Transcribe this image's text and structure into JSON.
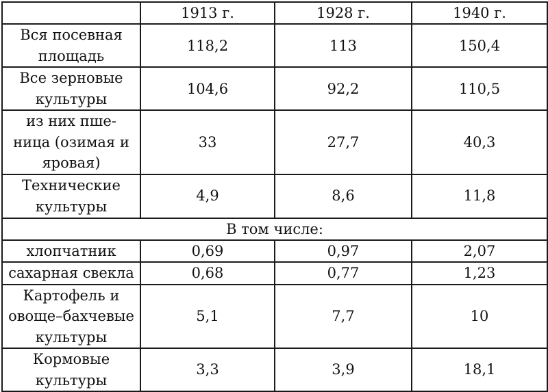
{
  "columns": [
    "",
    "1913 г.",
    "1928 г.",
    "1940 г."
  ],
  "rows": [
    {
      "label_lines": [
        "Вся посевная",
        "площадь"
      ],
      "values": [
        "118,2",
        "113",
        "150,4"
      ]
    },
    {
      "label_lines": [
        "Все зерновые",
        "культуры"
      ],
      "values": [
        "104,6",
        "92,2",
        "110,5"
      ]
    },
    {
      "label_lines": [
        "из них пше-",
        "ница (озимая и",
        "яровая)"
      ],
      "values": [
        "33",
        "27,7",
        "40,3"
      ]
    },
    {
      "label_lines": [
        "Технические",
        "культуры"
      ],
      "values": [
        "4,9",
        "8,6",
        "11,8"
      ]
    }
  ],
  "subheading": "В том числе:",
  "sub_rows": [
    {
      "label_lines": [
        "хлопчатник"
      ],
      "values": [
        "0,69",
        "0,97",
        "2,07"
      ]
    },
    {
      "label_lines": [
        "сахарная свекла"
      ],
      "values": [
        "0,68",
        "0,77",
        "1,23"
      ]
    },
    {
      "label_lines": [
        "Картофель и",
        "овоще–бахчевые",
        "культуры"
      ],
      "values": [
        "5,1",
        "7,7",
        "10"
      ]
    },
    {
      "label_lines": [
        "Кормовые",
        "культуры"
      ],
      "values": [
        "3,3",
        "3,9",
        "18,1"
      ]
    }
  ]
}
